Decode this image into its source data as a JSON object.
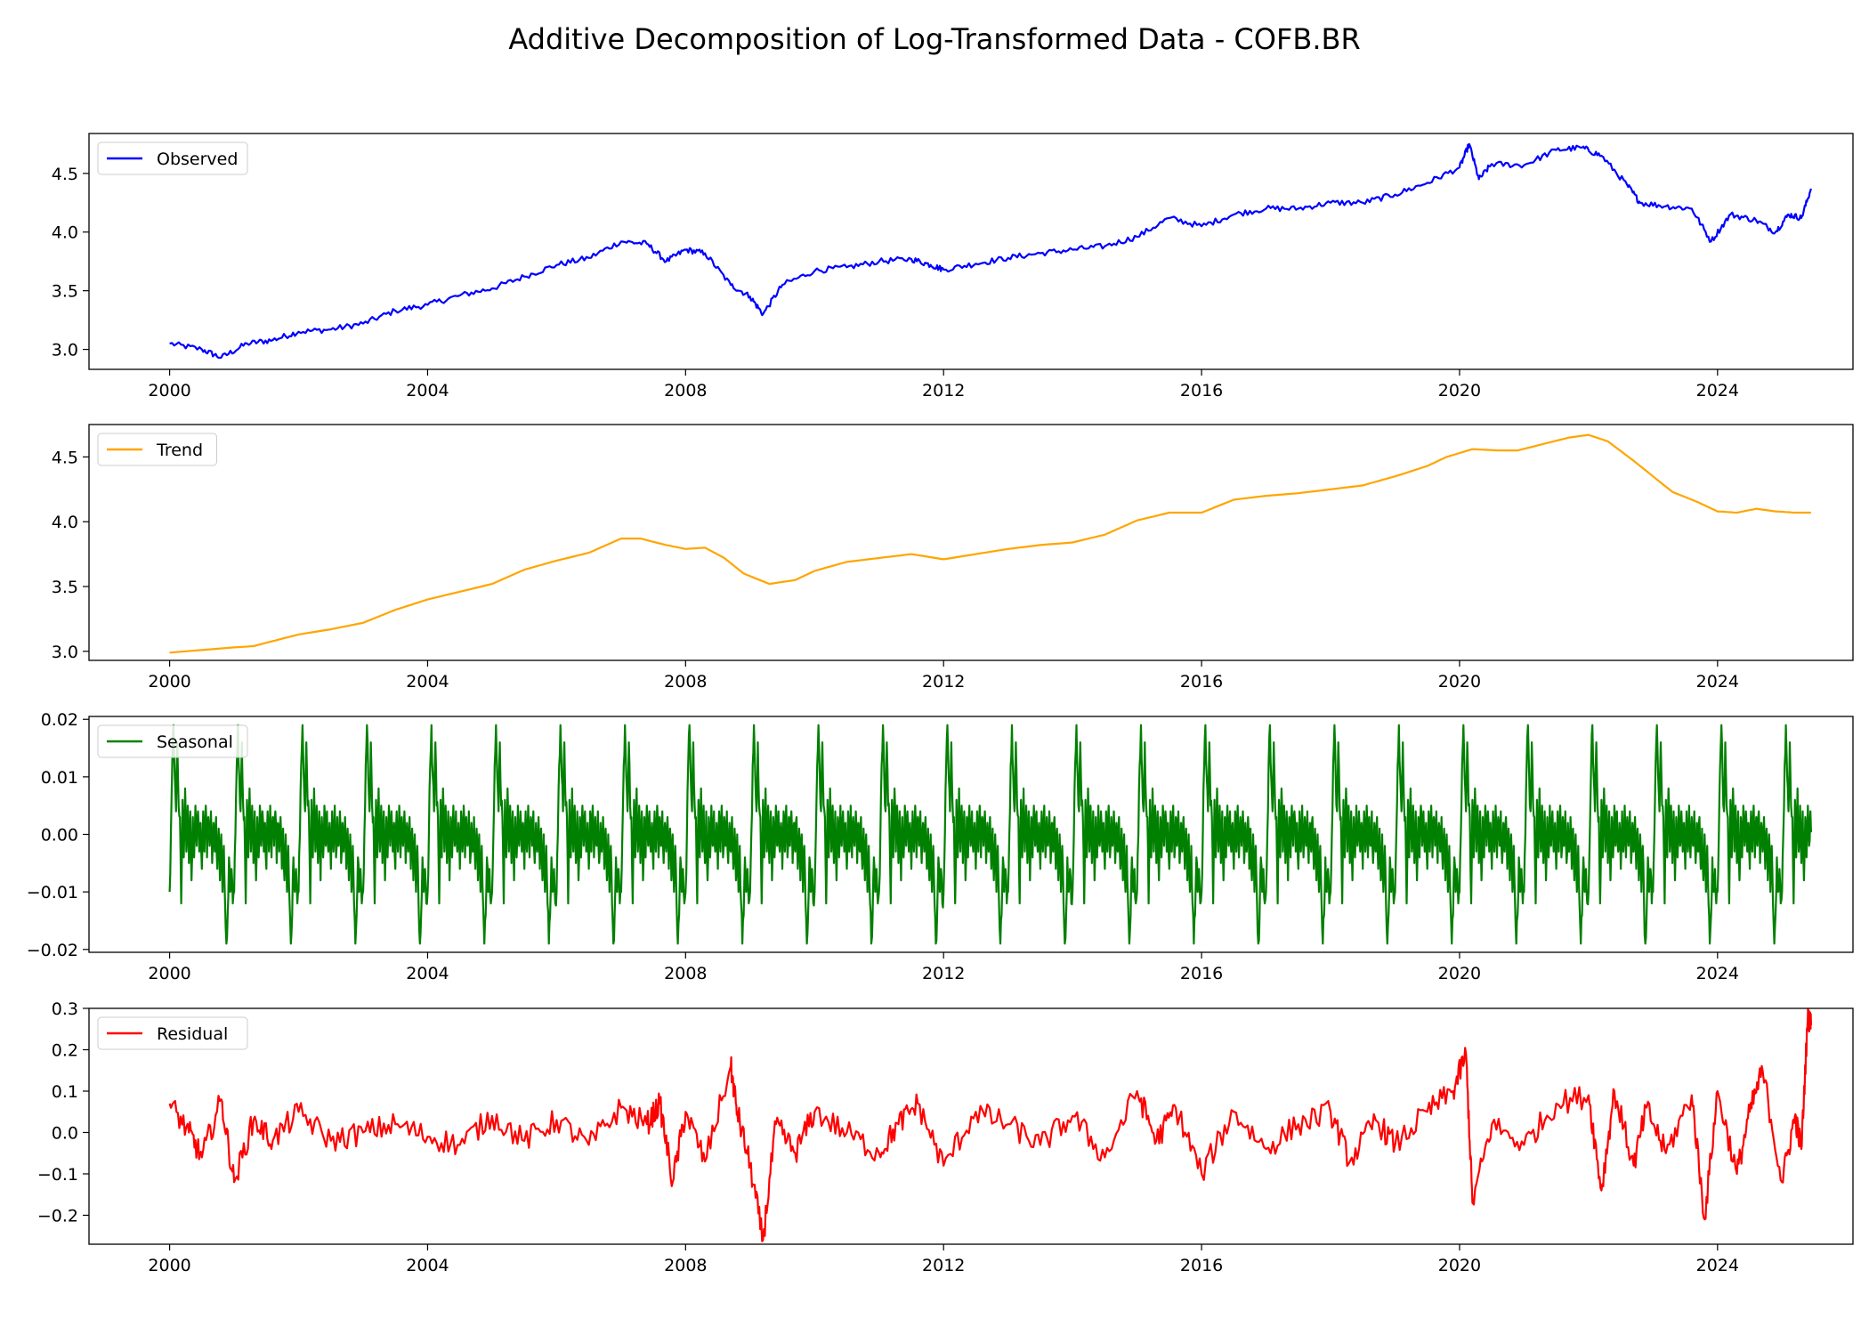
{
  "figure": {
    "title": "Additive Decomposition of Log-Transformed Data - COFB.BR"
  },
  "chart_data": [
    {
      "type": "line",
      "name": "observed",
      "series": [
        {
          "name": "Observed",
          "color": "#0000ff"
        }
      ],
      "xlim": [
        1998.75,
        2026.1
      ],
      "ylim": [
        2.83,
        4.84
      ],
      "xticks": [
        2000,
        2004,
        2008,
        2012,
        2016,
        2020,
        2024
      ],
      "yticks": [
        3.0,
        3.5,
        4.0,
        4.5
      ],
      "ytick_labels": [
        "3.0",
        "3.5",
        "4.0",
        "4.5"
      ],
      "legend": "top-left",
      "x": [
        2000.0,
        2000.5,
        2000.8,
        2001.2,
        2001.6,
        2002.0,
        2002.5,
        2003.0,
        2003.5,
        2004.0,
        2004.5,
        2005.0,
        2005.5,
        2006.0,
        2006.5,
        2007.0,
        2007.4,
        2007.7,
        2008.0,
        2008.3,
        2008.7,
        2009.0,
        2009.2,
        2009.5,
        2010.0,
        2010.5,
        2011.0,
        2011.5,
        2011.8,
        2012.0,
        2012.5,
        2013.0,
        2013.5,
        2014.0,
        2014.5,
        2015.0,
        2015.5,
        2016.0,
        2016.5,
        2017.0,
        2017.5,
        2018.0,
        2018.5,
        2019.0,
        2019.5,
        2020.0,
        2020.15,
        2020.3,
        2020.5,
        2021.0,
        2021.5,
        2021.9,
        2022.2,
        2022.6,
        2022.8,
        2023.2,
        2023.6,
        2023.9,
        2024.2,
        2024.6,
        2024.9,
        2025.1,
        2025.3,
        2025.45
      ],
      "values": [
        3.05,
        3.0,
        2.93,
        3.05,
        3.08,
        3.15,
        3.17,
        3.22,
        3.33,
        3.38,
        3.46,
        3.52,
        3.62,
        3.72,
        3.78,
        3.92,
        3.9,
        3.75,
        3.85,
        3.82,
        3.55,
        3.45,
        3.3,
        3.55,
        3.67,
        3.7,
        3.75,
        3.77,
        3.72,
        3.68,
        3.73,
        3.78,
        3.82,
        3.85,
        3.88,
        3.96,
        4.12,
        4.05,
        4.15,
        4.2,
        4.2,
        4.25,
        4.25,
        4.32,
        4.42,
        4.55,
        4.75,
        4.45,
        4.58,
        4.57,
        4.7,
        4.72,
        4.65,
        4.4,
        4.25,
        4.22,
        4.2,
        3.92,
        4.15,
        4.1,
        4.0,
        4.15,
        4.12,
        4.37
      ]
    },
    {
      "type": "line",
      "name": "trend",
      "series": [
        {
          "name": "Trend",
          "color": "#ffa500"
        }
      ],
      "xlim": [
        1998.75,
        2026.1
      ],
      "ylim": [
        2.93,
        4.75
      ],
      "xticks": [
        2000,
        2004,
        2008,
        2012,
        2016,
        2020,
        2024
      ],
      "yticks": [
        3.0,
        3.5,
        4.0,
        4.5
      ],
      "ytick_labels": [
        "3.0",
        "3.5",
        "4.0",
        "4.5"
      ],
      "legend": "top-left",
      "x": [
        2000.0,
        2000.5,
        2001.0,
        2001.3,
        2002.0,
        2002.5,
        2003.0,
        2003.5,
        2004.0,
        2004.5,
        2005.0,
        2005.5,
        2006.0,
        2006.5,
        2007.0,
        2007.3,
        2007.7,
        2008.0,
        2008.3,
        2008.6,
        2008.9,
        2009.3,
        2009.7,
        2010.0,
        2010.5,
        2011.0,
        2011.5,
        2012.0,
        2012.5,
        2013.0,
        2013.5,
        2014.0,
        2014.5,
        2015.0,
        2015.5,
        2016.0,
        2016.5,
        2017.0,
        2017.5,
        2018.0,
        2018.5,
        2019.0,
        2019.5,
        2019.8,
        2020.2,
        2020.6,
        2020.9,
        2021.3,
        2021.7,
        2022.0,
        2022.3,
        2022.7,
        2023.0,
        2023.3,
        2023.7,
        2024.0,
        2024.3,
        2024.6,
        2024.9,
        2025.2,
        2025.45
      ],
      "values": [
        2.99,
        3.01,
        3.03,
        3.04,
        3.13,
        3.17,
        3.22,
        3.32,
        3.4,
        3.46,
        3.52,
        3.63,
        3.7,
        3.76,
        3.87,
        3.87,
        3.82,
        3.79,
        3.8,
        3.72,
        3.6,
        3.52,
        3.55,
        3.62,
        3.69,
        3.72,
        3.75,
        3.71,
        3.75,
        3.79,
        3.82,
        3.84,
        3.9,
        4.01,
        4.07,
        4.07,
        4.17,
        4.2,
        4.22,
        4.25,
        4.28,
        4.35,
        4.43,
        4.5,
        4.56,
        4.55,
        4.55,
        4.6,
        4.65,
        4.67,
        4.62,
        4.47,
        4.35,
        4.23,
        4.15,
        4.08,
        4.07,
        4.1,
        4.08,
        4.07,
        4.07
      ]
    },
    {
      "type": "line",
      "name": "seasonal",
      "series": [
        {
          "name": "Seasonal",
          "color": "#008000"
        }
      ],
      "xlim": [
        1998.75,
        2026.1
      ],
      "ylim": [
        -0.0205,
        0.0205
      ],
      "xticks": [
        2000,
        2004,
        2008,
        2012,
        2016,
        2020,
        2024
      ],
      "yticks": [
        -0.02,
        -0.01,
        0.0,
        0.01,
        0.02
      ],
      "ytick_labels": [
        "−0.02",
        "−0.01",
        "0.00",
        "0.01",
        "0.02"
      ],
      "legend": "top-left",
      "period_years": 1.0,
      "x_start": 2000.0,
      "x_end": 2025.45,
      "one_period_phase": [
        0.0,
        0.02,
        0.04,
        0.06,
        0.08,
        0.1,
        0.12,
        0.14,
        0.16,
        0.18,
        0.2,
        0.22,
        0.24,
        0.26,
        0.28,
        0.3,
        0.32,
        0.34,
        0.36,
        0.38,
        0.4,
        0.42,
        0.44,
        0.46,
        0.48,
        0.5,
        0.52,
        0.54,
        0.56,
        0.58,
        0.6,
        0.62,
        0.64,
        0.66,
        0.68,
        0.7,
        0.72,
        0.74,
        0.76,
        0.78,
        0.8,
        0.82,
        0.84,
        0.86,
        0.88,
        0.9,
        0.92,
        0.94,
        0.96,
        0.98
      ],
      "one_period_values": [
        -0.01,
        0.0,
        0.012,
        0.019,
        0.01,
        0.004,
        0.016,
        0.005,
        0.003,
        -0.012,
        0.006,
        -0.004,
        0.008,
        -0.003,
        0.005,
        -0.005,
        0.004,
        -0.008,
        0.003,
        -0.004,
        0.005,
        -0.002,
        0.004,
        -0.003,
        0.002,
        -0.006,
        0.004,
        -0.003,
        0.005,
        -0.004,
        0.003,
        -0.002,
        0.004,
        -0.005,
        0.002,
        -0.003,
        0.003,
        -0.006,
        0.001,
        -0.008,
        0.0,
        -0.01,
        -0.002,
        -0.012,
        -0.019,
        -0.014,
        -0.004,
        -0.01,
        -0.006,
        -0.012
      ]
    },
    {
      "type": "line",
      "name": "residual",
      "series": [
        {
          "name": "Residual",
          "color": "#ff0000"
        }
      ],
      "xlim": [
        1998.75,
        2026.1
      ],
      "ylim": [
        -0.27,
        0.3
      ],
      "xticks": [
        2000,
        2004,
        2008,
        2012,
        2016,
        2020,
        2024
      ],
      "yticks": [
        -0.2,
        -0.1,
        0.0,
        0.1,
        0.2,
        0.3
      ],
      "ytick_labels": [
        "−0.2",
        "−0.1",
        "0.0",
        "0.1",
        "0.2",
        "0.3"
      ],
      "legend": "top-left",
      "x": [
        2000.0,
        2000.3,
        2000.5,
        2000.8,
        2001.0,
        2001.3,
        2001.6,
        2002.0,
        2002.5,
        2003.0,
        2003.5,
        2004.0,
        2004.5,
        2005.0,
        2005.5,
        2006.0,
        2006.5,
        2007.0,
        2007.4,
        2007.6,
        2007.8,
        2008.0,
        2008.3,
        2008.7,
        2008.8,
        2009.0,
        2009.2,
        2009.4,
        2009.7,
        2010.0,
        2010.5,
        2011.0,
        2011.3,
        2011.6,
        2012.0,
        2012.5,
        2013.0,
        2013.5,
        2014.0,
        2014.5,
        2015.0,
        2015.3,
        2015.6,
        2016.0,
        2016.5,
        2017.0,
        2017.5,
        2018.0,
        2018.3,
        2018.7,
        2019.0,
        2019.5,
        2019.9,
        2020.1,
        2020.2,
        2020.5,
        2021.0,
        2021.5,
        2022.0,
        2022.2,
        2022.4,
        2022.7,
        2022.9,
        2023.2,
        2023.6,
        2023.8,
        2024.0,
        2024.3,
        2024.5,
        2024.7,
        2025.0,
        2025.2,
        2025.3,
        2025.4,
        2025.45
      ],
      "values": [
        0.07,
        0.0,
        -0.06,
        0.08,
        -0.12,
        0.03,
        -0.02,
        0.05,
        -0.02,
        0.0,
        0.02,
        -0.01,
        -0.03,
        0.04,
        -0.02,
        0.03,
        -0.03,
        0.06,
        0.02,
        0.07,
        -0.12,
        0.05,
        -0.07,
        0.16,
        0.05,
        -0.08,
        -0.26,
        0.02,
        -0.05,
        0.05,
        0.0,
        -0.05,
        0.02,
        0.07,
        -0.08,
        0.05,
        0.02,
        -0.03,
        0.04,
        -0.06,
        0.1,
        -0.02,
        0.06,
        -0.1,
        0.05,
        -0.04,
        0.02,
        0.05,
        -0.07,
        0.03,
        -0.03,
        0.05,
        0.1,
        0.19,
        -0.17,
        0.02,
        -0.03,
        0.07,
        0.09,
        -0.14,
        0.1,
        -0.08,
        0.06,
        -0.05,
        0.09,
        -0.21,
        0.1,
        -0.1,
        0.05,
        0.15,
        -0.12,
        0.04,
        -0.04,
        0.28,
        0.26
      ]
    }
  ]
}
